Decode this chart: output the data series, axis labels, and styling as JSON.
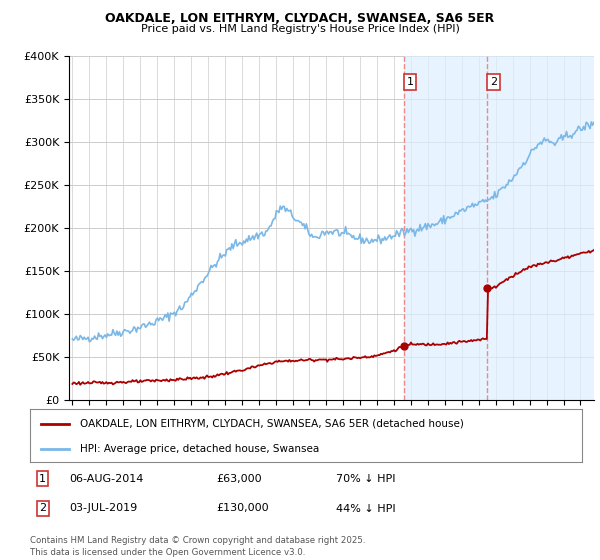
{
  "title": "OAKDALE, LON EITHRYM, CLYDACH, SWANSEA, SA6 5ER",
  "subtitle": "Price paid vs. HM Land Registry's House Price Index (HPI)",
  "legend_label_red": "OAKDALE, LON EITHRYM, CLYDACH, SWANSEA, SA6 5ER (detached house)",
  "legend_label_blue": "HPI: Average price, detached house, Swansea",
  "annotation1_label": "1",
  "annotation1_date": "06-AUG-2014",
  "annotation1_price": "£63,000",
  "annotation1_pct": "70% ↓ HPI",
  "annotation2_label": "2",
  "annotation2_date": "03-JUL-2019",
  "annotation2_price": "£130,000",
  "annotation2_pct": "44% ↓ HPI",
  "footer": "Contains HM Land Registry data © Crown copyright and database right 2025.\nThis data is licensed under the Open Government Licence v3.0.",
  "ylim": [
    0,
    400000
  ],
  "yticks": [
    0,
    50000,
    100000,
    150000,
    200000,
    250000,
    300000,
    350000,
    400000
  ],
  "background_color": "#ffffff",
  "plot_bg_color": "#ffffff",
  "hpi_color": "#7ab8e8",
  "price_color": "#aa0000",
  "vline_color": "#ee8888",
  "shade_color": "#ddeeff",
  "vline1_x": 2014.58,
  "vline2_x": 2019.5,
  "shade1_xmin": 2014.58,
  "shade1_xmax": 2019.5,
  "shade2_xmin": 2019.5,
  "shade2_xmax": 2026.0,
  "xmin": 1994.8,
  "xmax": 2025.8,
  "sale1_x": 2014.58,
  "sale1_y": 63000,
  "sale2_x": 2019.5,
  "sale2_y": 130000
}
